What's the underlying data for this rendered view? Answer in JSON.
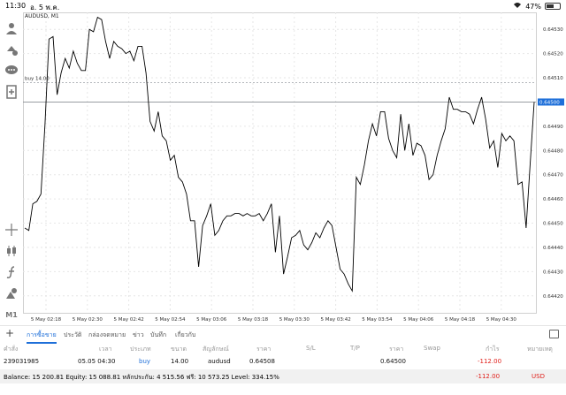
{
  "status_bar": {
    "time": "11:30",
    "date": "อ. 5 พ.ค.",
    "battery": "47%",
    "battery_level": 0.47
  },
  "chart": {
    "symbol_label": "AUDUSD, M1",
    "order_line_label": "buy 14.00",
    "order_line_price": 0.64508,
    "current_price_label": "0.64500",
    "current_price": 0.645,
    "line_color": "#000000",
    "order_line_color": "#9aa0a6",
    "price_tag_color": "#1e6fd9"
  },
  "toolbar": {
    "icons": [
      "crosshair-chart-icon",
      "indicators-icon",
      "chat-icon",
      "add-object-icon",
      "crosshair-icon",
      "candlestick-icon",
      "function-icon",
      "shapes-icon",
      "timeframe-icon"
    ],
    "timeframe_label": "M1"
  },
  "chart_data": {
    "type": "line",
    "title": "AUDUSD, M1",
    "xlabel": "",
    "ylabel": "",
    "ylim": [
      0.64413,
      0.64537
    ],
    "x_tick_labels": [
      "5 May 02:18",
      "5 May 02:30",
      "5 May 02:42",
      "5 May 02:54",
      "5 May 03:06",
      "5 May 03:18",
      "5 May 03:30",
      "5 May 03:42",
      "5 May 03:54",
      "5 May 04:06",
      "5 May 04:18",
      "5 May 04:30"
    ],
    "y_tick_labels": [
      "0.64530",
      "0.64520",
      "0.64510",
      "0.64490",
      "0.64480",
      "0.64470",
      "0.64460",
      "0.64450",
      "0.64440",
      "0.64430",
      "0.64420"
    ],
    "grid": true,
    "series": [
      {
        "values": [
          0.64448,
          0.64447,
          0.64458,
          0.64459,
          0.64462,
          0.64491,
          0.64526,
          0.64527,
          0.64503,
          0.64512,
          0.64518,
          0.64514,
          0.64521,
          0.64516,
          0.64513,
          0.64513,
          0.6453,
          0.64529,
          0.64535,
          0.64534,
          0.64525,
          0.64518,
          0.64525,
          0.64523,
          0.64522,
          0.6452,
          0.64521,
          0.64517,
          0.64523,
          0.64523,
          0.64512,
          0.64492,
          0.64488,
          0.64496,
          0.64486,
          0.64484,
          0.64476,
          0.64478,
          0.64469,
          0.64467,
          0.64462,
          0.64451,
          0.64451,
          0.64432,
          0.64449,
          0.64453,
          0.64458,
          0.64445,
          0.64447,
          0.64451,
          0.64453,
          0.64453,
          0.64454,
          0.64454,
          0.64453,
          0.64454,
          0.64453,
          0.64453,
          0.64454,
          0.64451,
          0.64454,
          0.64458,
          0.64438,
          0.64453,
          0.64429,
          0.64436,
          0.64444,
          0.64445,
          0.64447,
          0.64441,
          0.64439,
          0.64442,
          0.64446,
          0.64444,
          0.64448,
          0.64451,
          0.64449,
          0.6444,
          0.64431,
          0.64429,
          0.64425,
          0.64422,
          0.64469,
          0.64466,
          0.64474,
          0.64484,
          0.64491,
          0.64486,
          0.64496,
          0.64496,
          0.64485,
          0.6448,
          0.64477,
          0.64495,
          0.6448,
          0.64491,
          0.64478,
          0.64483,
          0.64482,
          0.64478,
          0.64468,
          0.6447,
          0.64478,
          0.64484,
          0.64489,
          0.64502,
          0.64497,
          0.64497,
          0.64496,
          0.64496,
          0.64495,
          0.64491,
          0.64497,
          0.64502,
          0.64493,
          0.64481,
          0.64484,
          0.64473,
          0.64487,
          0.64484,
          0.64486,
          0.64484,
          0.64466,
          0.64467,
          0.64448,
          0.64474,
          0.645
        ]
      }
    ]
  },
  "tabs": [
    {
      "label": "การซื้อขาย",
      "active": true
    },
    {
      "label": "ประวัติ",
      "active": false
    },
    {
      "label": "กล่องจดหมาย",
      "active": false
    },
    {
      "label": "ข่าว",
      "active": false
    },
    {
      "label": "บันทึก",
      "active": false
    },
    {
      "label": "เกี่ยวกับ",
      "active": false
    }
  ],
  "table": {
    "headers": [
      "คำสั่ง",
      "เวลา",
      "ประเภท",
      "ขนาด",
      "สัญลักษณ์",
      "ราคา",
      "S/L",
      "T/P",
      "ราคา",
      "Swap",
      "กำไร",
      "หมายเหตุ"
    ],
    "row": {
      "order": "239031985",
      "time": "05.05 04:30",
      "type": "buy",
      "size": "14.00",
      "symbol": "audusd",
      "open_price": "0.64508",
      "sl": "",
      "tp": "",
      "price": "0.64500",
      "swap": "",
      "profit": "-112.00",
      "comment": ""
    }
  },
  "summary": {
    "text": "Balance: 15 200.81  Equity: 15 088.81  หลักประกัน: 4 515.56  ฟรี: 10 573.25  Level: 334.15%",
    "total": "-112.00",
    "currency": "USD"
  }
}
